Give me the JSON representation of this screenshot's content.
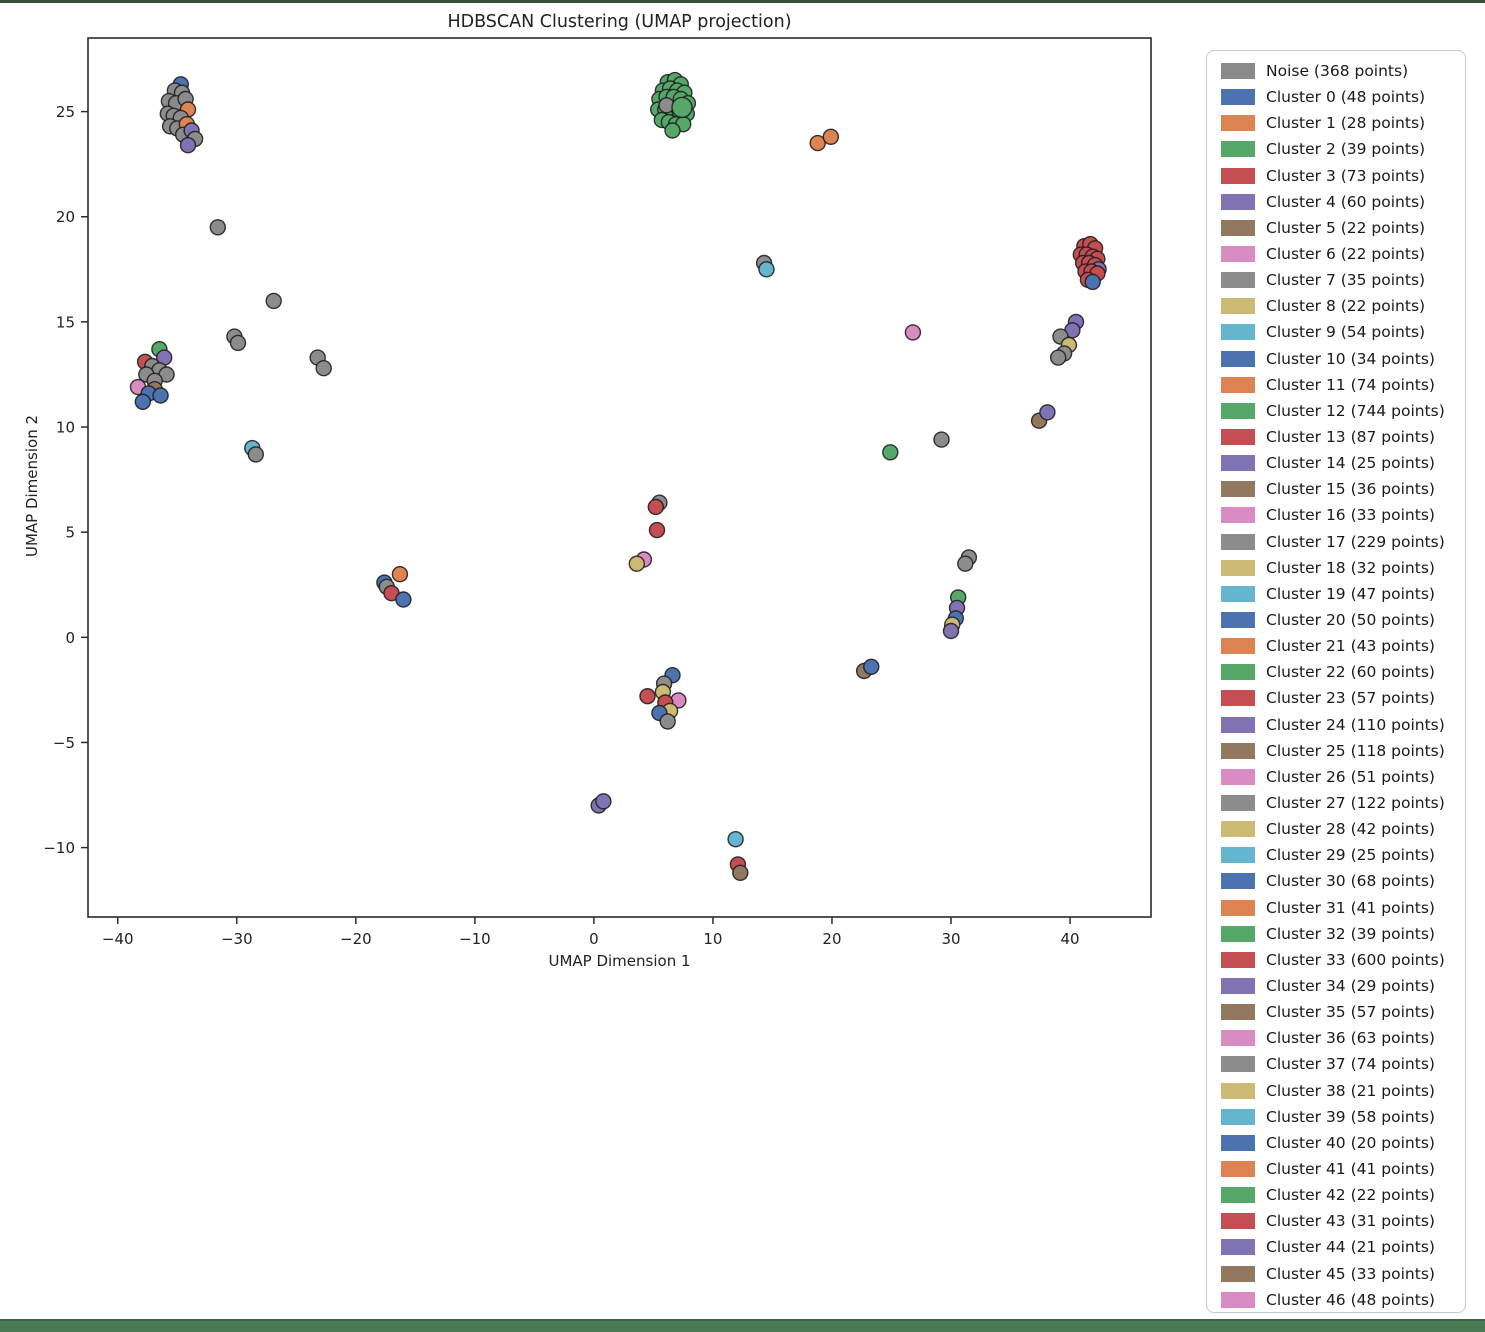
{
  "figure": {
    "title": "HDBSCAN Clustering (UMAP projection)",
    "xlabel": "UMAP Dimension 1",
    "ylabel": "UMAP Dimension 2"
  },
  "chart_data": {
    "type": "scatter",
    "title": "HDBSCAN Clustering (UMAP projection)",
    "xlabel": "UMAP Dimension 1",
    "ylabel": "UMAP Dimension 2",
    "xlim": [
      -42.5,
      46.8
    ],
    "ylim": [
      -13.3,
      28.5
    ],
    "xticks": [
      -40,
      -30,
      -20,
      -10,
      0,
      10,
      20,
      30,
      40
    ],
    "yticks": [
      -10,
      -5,
      0,
      5,
      10,
      15,
      20,
      25
    ],
    "grid": false,
    "legend_position": "right-outside",
    "marker": {
      "radius": 7.5,
      "edge_color": "#1c1c1c",
      "edge_width": 1.4
    },
    "palette": {
      "noise": "#8a8a8a",
      "gray": "#8c8c8c",
      "blue": "#4C72B0",
      "orange": "#DD8452",
      "green": "#55A868",
      "red": "#C44E52",
      "purple": "#8172B3",
      "brown": "#937860",
      "pink": "#DA8BC3",
      "khaki": "#CCB974",
      "cyan": "#64B5CD"
    },
    "points": [
      [
        -34.7,
        26.3,
        "blue"
      ],
      [
        -35.2,
        26.0,
        "gray"
      ],
      [
        -34.6,
        25.9,
        "gray"
      ],
      [
        -35.7,
        25.5,
        "gray"
      ],
      [
        -35.1,
        25.4,
        "gray"
      ],
      [
        -34.3,
        25.6,
        "gray"
      ],
      [
        -34.1,
        25.1,
        "orange"
      ],
      [
        -35.8,
        24.9,
        "gray"
      ],
      [
        -35.3,
        24.8,
        "gray"
      ],
      [
        -34.7,
        24.7,
        "gray"
      ],
      [
        -35.6,
        24.3,
        "gray"
      ],
      [
        -35.0,
        24.2,
        "gray"
      ],
      [
        -34.2,
        24.4,
        "orange"
      ],
      [
        -34.5,
        23.9,
        "gray"
      ],
      [
        -33.8,
        24.1,
        "purple"
      ],
      [
        -33.5,
        23.7,
        "gray"
      ],
      [
        -34.1,
        23.4,
        "purple"
      ],
      [
        -36.5,
        13.7,
        "green"
      ],
      [
        -37.7,
        13.1,
        "red"
      ],
      [
        -36.1,
        13.3,
        "purple"
      ],
      [
        -37.1,
        12.9,
        "gray"
      ],
      [
        -36.5,
        12.7,
        "gray"
      ],
      [
        -35.9,
        12.5,
        "gray"
      ],
      [
        -37.6,
        12.5,
        "gray"
      ],
      [
        -36.9,
        12.2,
        "gray"
      ],
      [
        -38.3,
        11.9,
        "pink"
      ],
      [
        -36.9,
        11.8,
        "brown"
      ],
      [
        -37.4,
        11.6,
        "blue"
      ],
      [
        -36.4,
        11.5,
        "blue"
      ],
      [
        -37.9,
        11.2,
        "blue"
      ],
      [
        -31.6,
        19.5,
        "gray"
      ],
      [
        -30.2,
        14.3,
        "gray"
      ],
      [
        -29.9,
        14.0,
        "gray"
      ],
      [
        -26.9,
        16.0,
        "gray"
      ],
      [
        -23.2,
        13.3,
        "gray"
      ],
      [
        -22.7,
        12.8,
        "gray"
      ],
      [
        -28.7,
        9.0,
        "cyan"
      ],
      [
        -28.4,
        8.7,
        "gray"
      ],
      [
        -17.6,
        2.6,
        "blue"
      ],
      [
        -16.3,
        3.0,
        "orange"
      ],
      [
        -17.4,
        2.4,
        "gray"
      ],
      [
        -17.0,
        2.1,
        "red"
      ],
      [
        -16.0,
        1.8,
        "blue"
      ],
      [
        6.2,
        26.4,
        "green"
      ],
      [
        6.8,
        26.5,
        "green"
      ],
      [
        7.3,
        26.3,
        "green"
      ],
      [
        5.8,
        26.0,
        "green"
      ],
      [
        6.4,
        26.1,
        "green"
      ],
      [
        7.0,
        26.0,
        "green"
      ],
      [
        7.6,
        25.9,
        "green"
      ],
      [
        5.5,
        25.6,
        "green"
      ],
      [
        6.1,
        25.7,
        "green"
      ],
      [
        6.7,
        25.7,
        "green"
      ],
      [
        7.3,
        25.6,
        "green"
      ],
      [
        7.9,
        25.4,
        "green"
      ],
      [
        5.4,
        25.1,
        "green"
      ],
      [
        6.0,
        25.1,
        "green"
      ],
      [
        6.6,
        25.1,
        "green"
      ],
      [
        7.2,
        25.0,
        "green"
      ],
      [
        7.8,
        24.9,
        "green"
      ],
      [
        5.7,
        24.6,
        "green"
      ],
      [
        6.3,
        24.5,
        "green"
      ],
      [
        6.9,
        24.4,
        "green"
      ],
      [
        7.5,
        24.4,
        "green"
      ],
      [
        6.6,
        24.1,
        "green"
      ],
      [
        6.1,
        25.3,
        "gray"
      ],
      [
        7.4,
        25.2,
        "green",
        10
      ],
      [
        18.8,
        23.5,
        "orange"
      ],
      [
        19.9,
        23.8,
        "orange"
      ],
      [
        14.3,
        17.8,
        "gray"
      ],
      [
        14.5,
        17.5,
        "cyan"
      ],
      [
        41.2,
        18.6,
        "red"
      ],
      [
        41.7,
        18.7,
        "red"
      ],
      [
        42.1,
        18.5,
        "red"
      ],
      [
        40.9,
        18.2,
        "red"
      ],
      [
        41.4,
        18.2,
        "red"
      ],
      [
        41.9,
        18.1,
        "red"
      ],
      [
        42.3,
        18.0,
        "red"
      ],
      [
        41.1,
        17.8,
        "red"
      ],
      [
        41.6,
        17.8,
        "red"
      ],
      [
        42.1,
        17.7,
        "red"
      ],
      [
        42.4,
        17.5,
        "purple"
      ],
      [
        41.3,
        17.4,
        "red"
      ],
      [
        41.8,
        17.4,
        "red"
      ],
      [
        42.3,
        17.3,
        "red"
      ],
      [
        41.5,
        17.0,
        "red"
      ],
      [
        41.9,
        16.9,
        "blue"
      ],
      [
        40.5,
        15.0,
        "purple"
      ],
      [
        40.2,
        14.6,
        "purple"
      ],
      [
        39.2,
        14.3,
        "gray"
      ],
      [
        39.9,
        13.9,
        "khaki"
      ],
      [
        39.5,
        13.5,
        "gray"
      ],
      [
        39.0,
        13.3,
        "gray"
      ],
      [
        26.8,
        14.5,
        "pink"
      ],
      [
        29.2,
        9.4,
        "gray"
      ],
      [
        24.9,
        8.8,
        "green"
      ],
      [
        37.4,
        10.3,
        "brown"
      ],
      [
        38.1,
        10.7,
        "purple"
      ],
      [
        5.5,
        6.4,
        "gray"
      ],
      [
        5.2,
        6.2,
        "red"
      ],
      [
        5.3,
        5.1,
        "red"
      ],
      [
        4.2,
        3.7,
        "pink"
      ],
      [
        3.6,
        3.5,
        "khaki"
      ],
      [
        31.5,
        3.8,
        "gray"
      ],
      [
        31.2,
        3.5,
        "gray"
      ],
      [
        30.6,
        1.9,
        "green"
      ],
      [
        30.5,
        1.4,
        "purple"
      ],
      [
        30.4,
        0.9,
        "blue"
      ],
      [
        30.1,
        0.6,
        "khaki"
      ],
      [
        30.0,
        0.3,
        "purple"
      ],
      [
        22.7,
        -1.6,
        "brown"
      ],
      [
        23.3,
        -1.4,
        "blue"
      ],
      [
        6.6,
        -1.8,
        "blue"
      ],
      [
        5.9,
        -2.2,
        "gray"
      ],
      [
        5.8,
        -2.6,
        "khaki"
      ],
      [
        4.5,
        -2.8,
        "red"
      ],
      [
        7.1,
        -3.0,
        "pink"
      ],
      [
        6.0,
        -3.1,
        "red"
      ],
      [
        6.4,
        -3.5,
        "khaki"
      ],
      [
        5.5,
        -3.6,
        "blue"
      ],
      [
        6.2,
        -4.0,
        "gray"
      ],
      [
        0.4,
        -8.0,
        "purple"
      ],
      [
        0.8,
        -7.8,
        "purple"
      ],
      [
        11.9,
        -9.6,
        "cyan"
      ],
      [
        12.1,
        -10.8,
        "red"
      ],
      [
        12.3,
        -11.2,
        "brown"
      ]
    ],
    "legend": [
      {
        "label": "Noise (368 points)",
        "color": "noise"
      },
      {
        "label": "Cluster 0 (48 points)",
        "color": "blue"
      },
      {
        "label": "Cluster 1 (28 points)",
        "color": "orange"
      },
      {
        "label": "Cluster 2 (39 points)",
        "color": "green"
      },
      {
        "label": "Cluster 3 (73 points)",
        "color": "red"
      },
      {
        "label": "Cluster 4 (60 points)",
        "color": "purple"
      },
      {
        "label": "Cluster 5 (22 points)",
        "color": "brown"
      },
      {
        "label": "Cluster 6 (22 points)",
        "color": "pink"
      },
      {
        "label": "Cluster 7 (35 points)",
        "color": "gray"
      },
      {
        "label": "Cluster 8 (22 points)",
        "color": "khaki"
      },
      {
        "label": "Cluster 9 (54 points)",
        "color": "cyan"
      },
      {
        "label": "Cluster 10 (34 points)",
        "color": "blue"
      },
      {
        "label": "Cluster 11 (74 points)",
        "color": "orange"
      },
      {
        "label": "Cluster 12 (744 points)",
        "color": "green"
      },
      {
        "label": "Cluster 13 (87 points)",
        "color": "red"
      },
      {
        "label": "Cluster 14 (25 points)",
        "color": "purple"
      },
      {
        "label": "Cluster 15 (36 points)",
        "color": "brown"
      },
      {
        "label": "Cluster 16 (33 points)",
        "color": "pink"
      },
      {
        "label": "Cluster 17 (229 points)",
        "color": "gray"
      },
      {
        "label": "Cluster 18 (32 points)",
        "color": "khaki"
      },
      {
        "label": "Cluster 19 (47 points)",
        "color": "cyan"
      },
      {
        "label": "Cluster 20 (50 points)",
        "color": "blue"
      },
      {
        "label": "Cluster 21 (43 points)",
        "color": "orange"
      },
      {
        "label": "Cluster 22 (60 points)",
        "color": "green"
      },
      {
        "label": "Cluster 23 (57 points)",
        "color": "red"
      },
      {
        "label": "Cluster 24 (110 points)",
        "color": "purple"
      },
      {
        "label": "Cluster 25 (118 points)",
        "color": "brown"
      },
      {
        "label": "Cluster 26 (51 points)",
        "color": "pink"
      },
      {
        "label": "Cluster 27 (122 points)",
        "color": "gray"
      },
      {
        "label": "Cluster 28 (42 points)",
        "color": "khaki"
      },
      {
        "label": "Cluster 29 (25 points)",
        "color": "cyan"
      },
      {
        "label": "Cluster 30 (68 points)",
        "color": "blue"
      },
      {
        "label": "Cluster 31 (41 points)",
        "color": "orange"
      },
      {
        "label": "Cluster 32 (39 points)",
        "color": "green"
      },
      {
        "label": "Cluster 33 (600 points)",
        "color": "red"
      },
      {
        "label": "Cluster 34 (29 points)",
        "color": "purple"
      },
      {
        "label": "Cluster 35 (57 points)",
        "color": "brown"
      },
      {
        "label": "Cluster 36 (63 points)",
        "color": "pink"
      },
      {
        "label": "Cluster 37 (74 points)",
        "color": "gray"
      },
      {
        "label": "Cluster 38 (21 points)",
        "color": "khaki"
      },
      {
        "label": "Cluster 39 (58 points)",
        "color": "cyan"
      },
      {
        "label": "Cluster 40 (20 points)",
        "color": "blue"
      },
      {
        "label": "Cluster 41 (41 points)",
        "color": "orange"
      },
      {
        "label": "Cluster 42 (22 points)",
        "color": "green"
      },
      {
        "label": "Cluster 43 (31 points)",
        "color": "red"
      },
      {
        "label": "Cluster 44 (21 points)",
        "color": "purple"
      },
      {
        "label": "Cluster 45 (33 points)",
        "color": "brown"
      },
      {
        "label": "Cluster 46 (48 points)",
        "color": "pink"
      }
    ]
  }
}
